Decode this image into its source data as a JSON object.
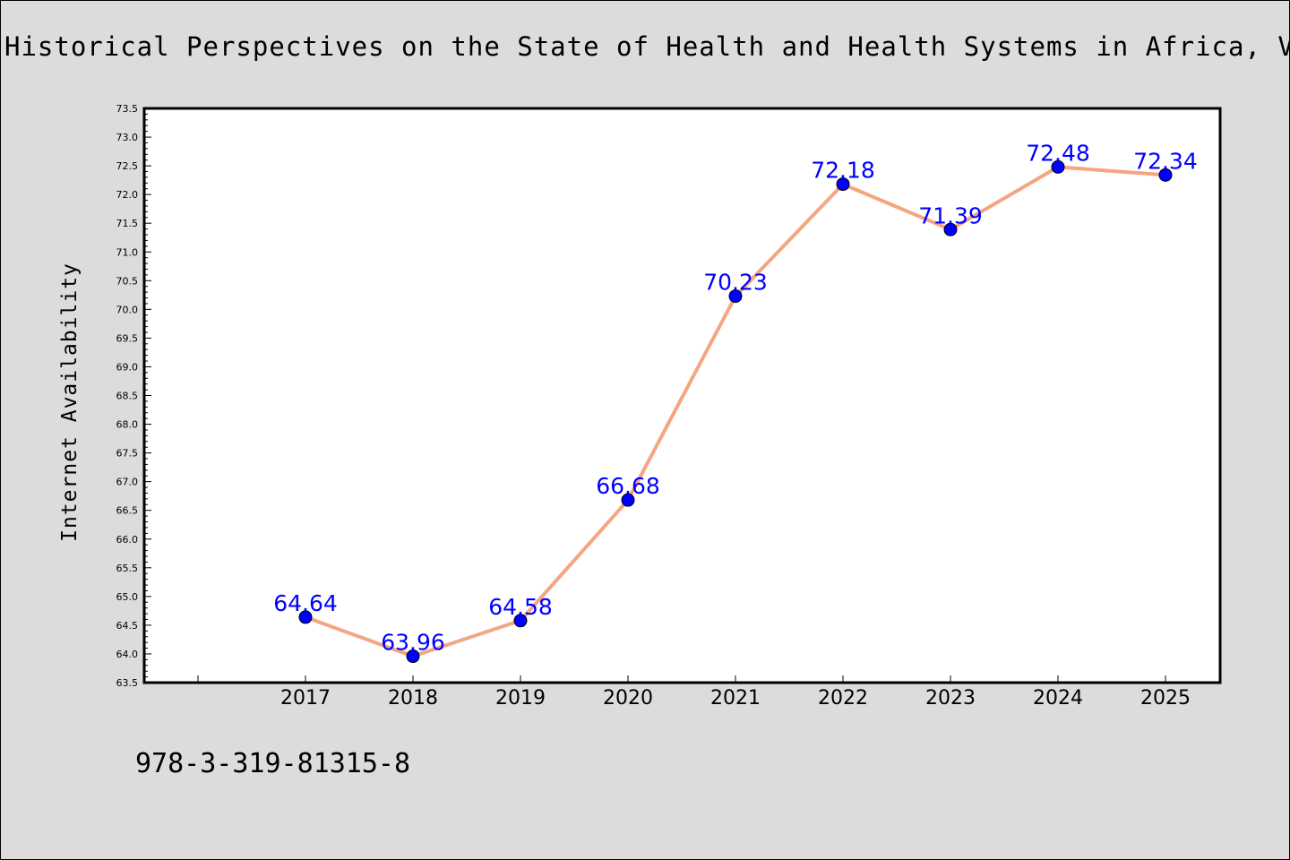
{
  "chart_data": {
    "type": "line",
    "title": "Historical Perspectives on the State of Health and Health Systems in Africa, Vol",
    "xlabel": "",
    "ylabel": "Internet Availability",
    "categories": [
      "2017",
      "2018",
      "2019",
      "2020",
      "2021",
      "2022",
      "2023",
      "2024",
      "2025"
    ],
    "values": [
      64.64,
      63.96,
      64.58,
      66.68,
      70.23,
      72.18,
      71.39,
      72.48,
      72.34
    ],
    "data_labels": [
      "64.64",
      "63.96",
      "64.58",
      "66.68",
      "70.23",
      "72.18",
      "71.39",
      "72.48",
      "72.34"
    ],
    "ylim": [
      63.5,
      73.5
    ],
    "yticks": [
      "63.5",
      "64.0",
      "64.5",
      "65.0",
      "65.5",
      "66.0",
      "66.5",
      "67.0",
      "67.5",
      "68.0",
      "68.5",
      "69.0",
      "69.5",
      "70.0",
      "70.5",
      "71.0",
      "71.5",
      "72.0",
      "72.5",
      "73.0",
      "73.5"
    ],
    "grid": false,
    "colors": {
      "line": "#f4a582",
      "marker": "#0000ff",
      "data_label": "#0000ff",
      "background": "#dcdcdc",
      "plot_background": "#ffffff"
    }
  },
  "footer": {
    "text": "978-3-319-81315-8"
  }
}
